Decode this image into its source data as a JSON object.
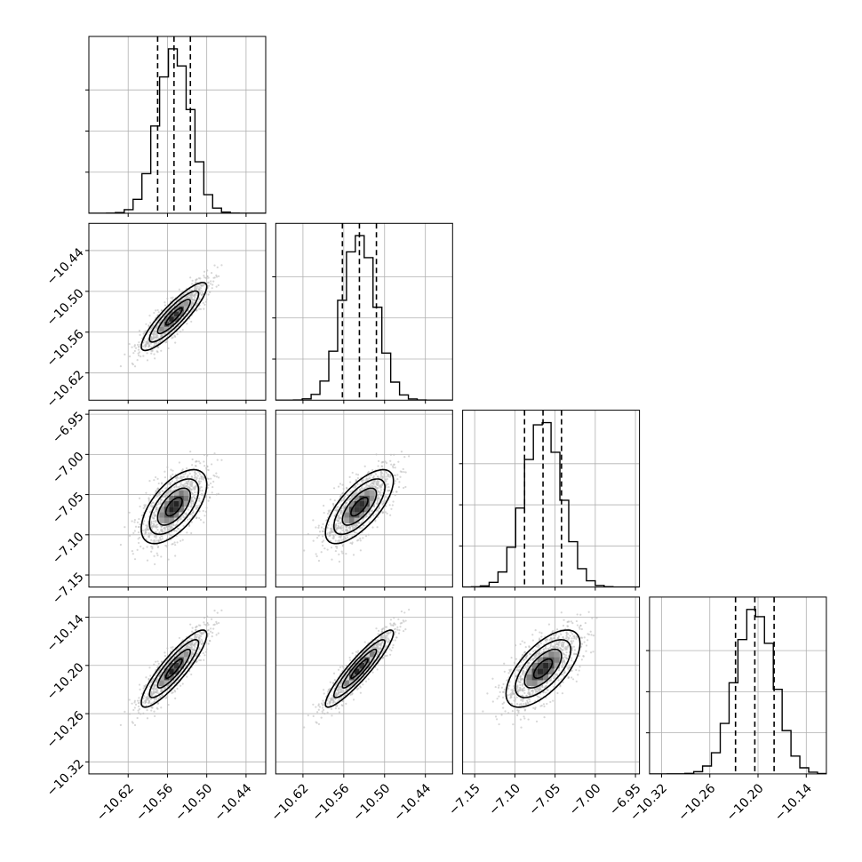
{
  "colors": {
    "ink": "#000000",
    "grid": "#b0b0b0",
    "samples": "#bdbdbd"
  },
  "chart_data": {
    "type": "corner",
    "title": "",
    "grid": true,
    "dimensions": [
      {
        "range": [
          -10.68,
          -10.41
        ],
        "ticks": [
          -10.62,
          -10.56,
          -10.5,
          -10.44
        ],
        "tick_labels": [
          "−10.62",
          "−10.56",
          "−10.50",
          "−10.44"
        ],
        "median": -10.55,
        "q16": -10.575,
        "q84": -10.525,
        "sigma": 0.025
      },
      {
        "range": [
          -10.66,
          -10.4
        ],
        "ticks": [
          -10.62,
          -10.56,
          -10.5,
          -10.44
        ],
        "tick_labels": [
          "−10.62",
          "−10.56",
          "−10.50",
          "−10.44"
        ],
        "median": -10.537,
        "q16": -10.562,
        "q84": -10.512,
        "sigma": 0.025
      },
      {
        "range": [
          -7.165,
          -6.945
        ],
        "ticks": [
          -7.15,
          -7.1,
          -7.05,
          -7.0,
          -6.95
        ],
        "tick_labels": [
          "−7.15",
          "−7.10",
          "−7.05",
          "−7.00",
          "−6.95"
        ],
        "median": -7.065,
        "q16": -7.088,
        "q84": -7.042,
        "sigma": 0.023
      },
      {
        "range": [
          -10.335,
          -10.115
        ],
        "ticks": [
          -10.32,
          -10.26,
          -10.2,
          -10.14
        ],
        "tick_labels": [
          "−10.32",
          "−10.26",
          "−10.20",
          "−10.14"
        ],
        "median": -10.204,
        "q16": -10.228,
        "q84": -10.18,
        "sigma": 0.024
      }
    ],
    "correlations": [
      {
        "row": 1,
        "col": 0,
        "rho": 0.88
      },
      {
        "row": 2,
        "col": 0,
        "rho": 0.6
      },
      {
        "row": 2,
        "col": 1,
        "rho": 0.7
      },
      {
        "row": 3,
        "col": 0,
        "rho": 0.88
      },
      {
        "row": 3,
        "col": 1,
        "rho": 0.92
      },
      {
        "row": 3,
        "col": 2,
        "rho": 0.65
      }
    ],
    "contour_levels_sigma": [
      0.5,
      1.0,
      1.5,
      2.0
    ],
    "quantile_lines": [
      "q16",
      "median",
      "q84"
    ],
    "histogram_bins": 20,
    "samples_per_panel": 1200
  }
}
